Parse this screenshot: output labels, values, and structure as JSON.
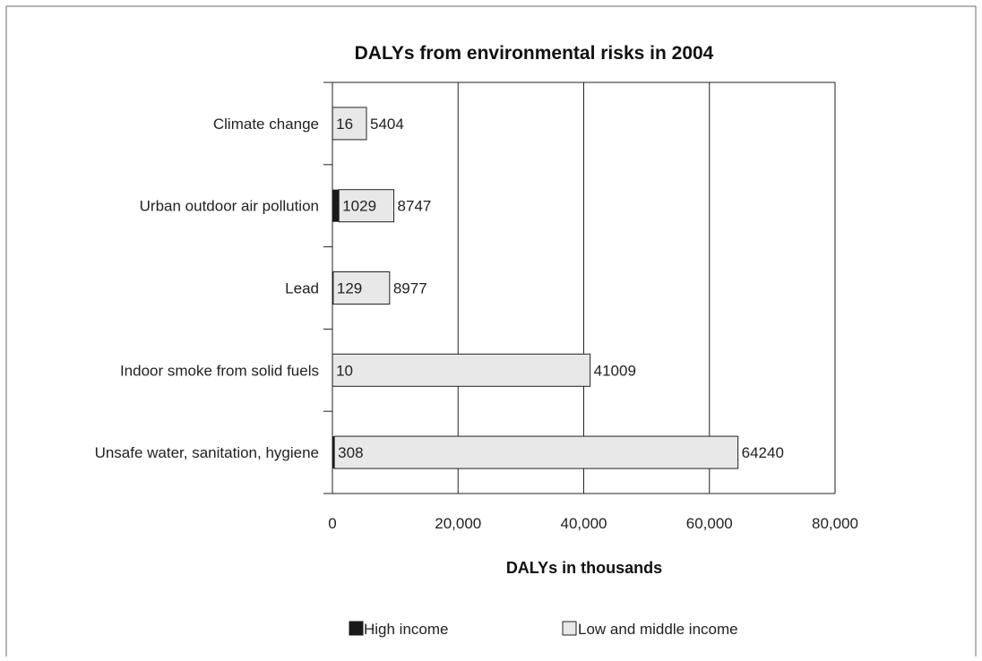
{
  "chart_data": {
    "type": "bar",
    "orientation": "horizontal",
    "stacked": true,
    "title": "DALYs from environmental risks in 2004",
    "xlabel": "DALYs in thousands",
    "ylabel": "",
    "xlim": [
      0,
      80000
    ],
    "xticks": [
      0,
      20000,
      40000,
      60000,
      80000
    ],
    "xtick_labels": [
      "0",
      "20,000",
      "40,000",
      "60,000",
      "80,000"
    ],
    "grid": "vertical",
    "legend_position": "bottom",
    "categories": [
      "Climate change",
      "Urban outdoor air pollution",
      "Lead",
      "Indoor smoke from solid fuels",
      "Unsafe water, sanitation, hygiene"
    ],
    "series": [
      {
        "name": "High income",
        "values": [
          16,
          1029,
          129,
          10,
          308
        ],
        "color": "#1a1a1a"
      },
      {
        "name": "Low and middle income",
        "values": [
          5404,
          8747,
          8977,
          41009,
          64240
        ],
        "color": "#e8e8e8"
      }
    ]
  }
}
